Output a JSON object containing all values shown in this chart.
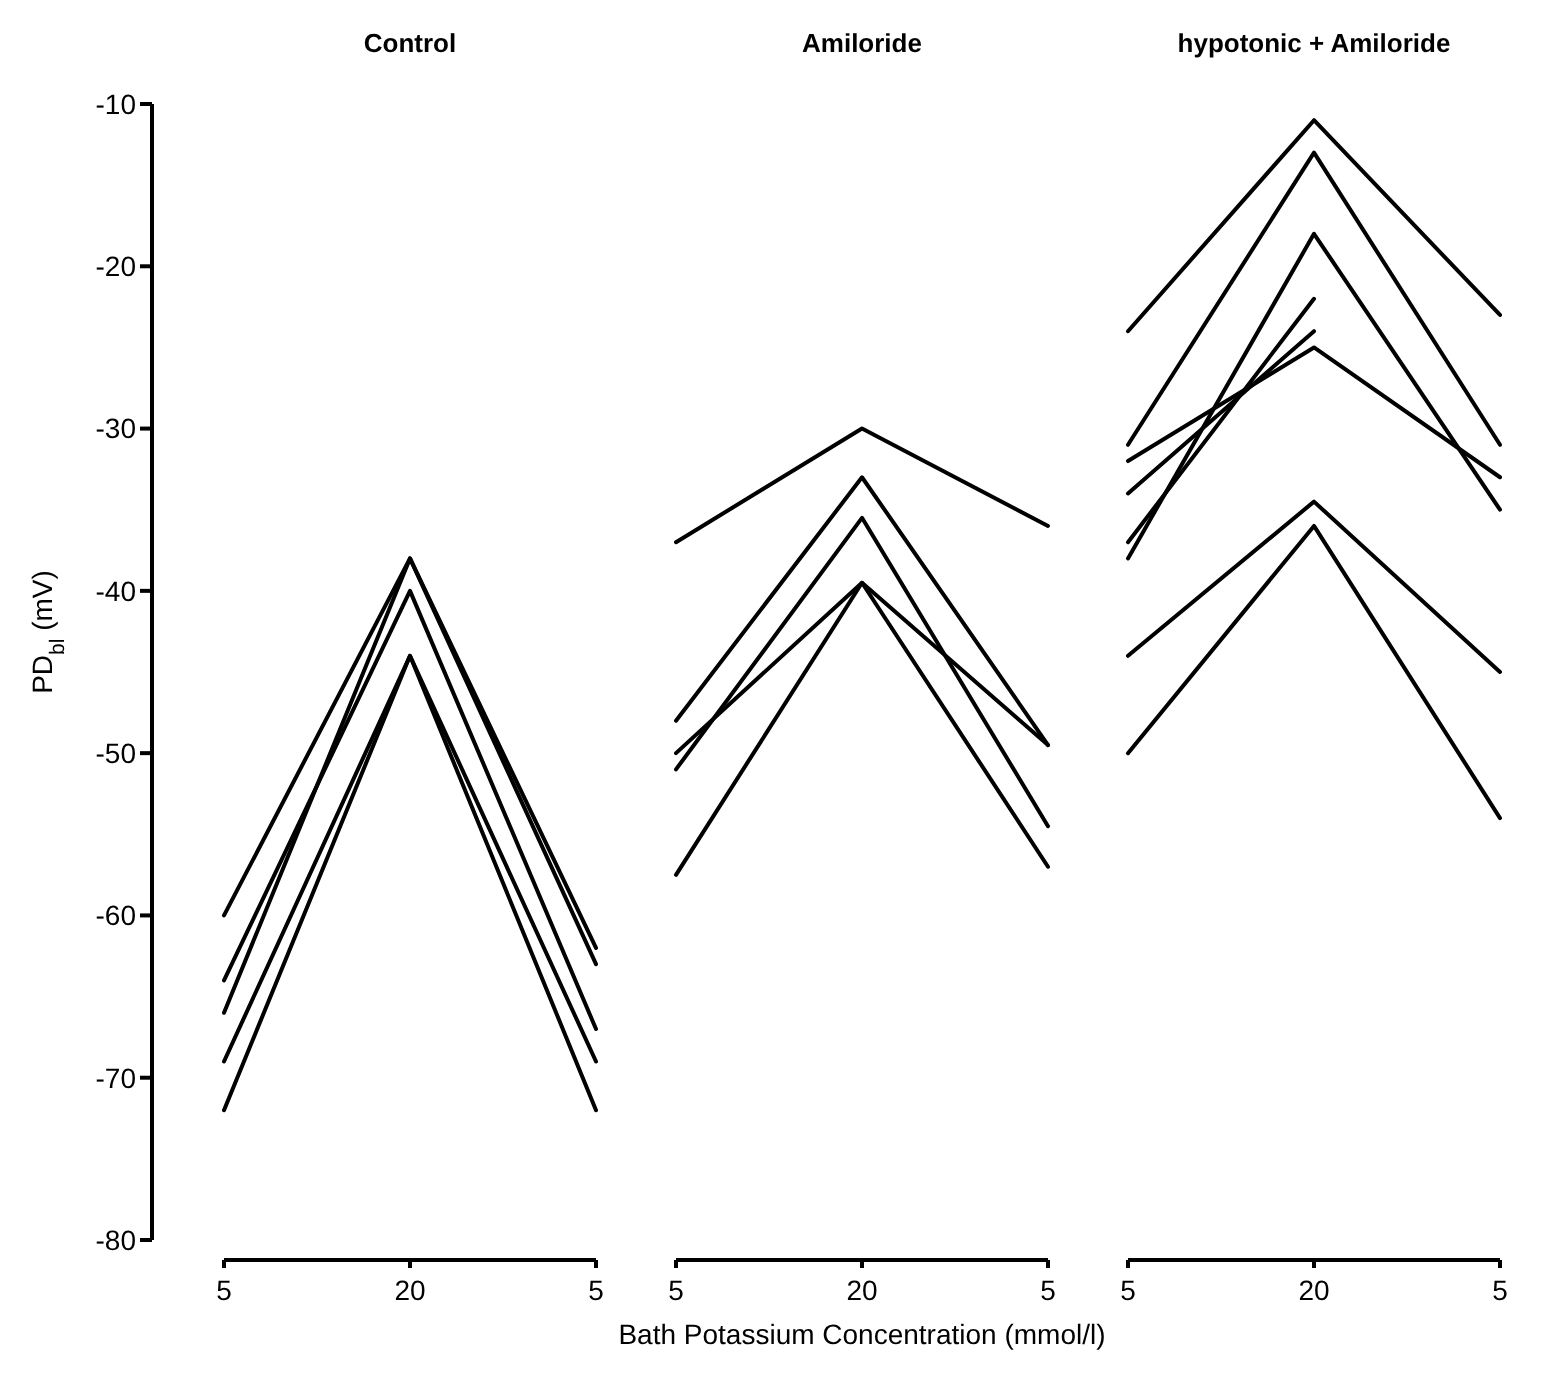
{
  "chart_data": [
    {
      "type": "line",
      "title": "Control",
      "ylabel": "PD$_{bl}$ (mV)",
      "categories": [
        "5",
        "20",
        "5"
      ],
      "ylim": [
        -80,
        -10
      ],
      "yticks": [
        -80,
        -70,
        -60,
        -50,
        -40,
        -30,
        -20,
        -10
      ],
      "series": [
        {
          "color": "#000000",
          "values": [
            -60,
            -38,
            -63
          ]
        },
        {
          "color": "#000000",
          "values": [
            -64,
            -40,
            -67
          ]
        },
        {
          "color": "#000000",
          "values": [
            -66,
            -38,
            -62
          ]
        },
        {
          "color": "#000000",
          "values": [
            -69,
            -44,
            -69
          ]
        },
        {
          "color": "#000000",
          "values": [
            -72,
            -44,
            -72
          ]
        }
      ]
    },
    {
      "type": "line",
      "title": "Amiloride",
      "xlabel": "Bath  Potassium  Concentration  (mmol/l)",
      "categories": [
        "5",
        "20",
        "5"
      ],
      "ylim": [
        -80,
        -10
      ],
      "tick_labels": "x",
      "series": [
        {
          "color": "#000000",
          "values": [
            -37,
            -30,
            -36
          ]
        },
        {
          "color": "#000000",
          "values": [
            -48,
            -33,
            -49.5
          ]
        },
        {
          "color": "#000000",
          "values": [
            -51,
            -35.5,
            -54.5
          ]
        },
        {
          "color": "#000000",
          "values": [
            -50,
            -39.5,
            -49.5
          ]
        },
        {
          "color": "#000000",
          "values": [
            -57.5,
            -39.5,
            -57
          ]
        }
      ]
    },
    {
      "type": "line",
      "title": "hypotonic + Amiloride",
      "categories": [
        "5",
        "20",
        "5"
      ],
      "ylim": [
        -80,
        -10
      ],
      "tick_labels": "x",
      "series": [
        {
          "color": "#000000",
          "values": [
            -24,
            -11,
            -23
          ]
        },
        {
          "color": "#000000",
          "values": [
            -31,
            -13,
            -31
          ]
        },
        {
          "color": "#000000",
          "values": [
            -32,
            -25,
            -33
          ]
        },
        {
          "color": "#000000",
          "values": [
            -34,
            -24,
            null
          ]
        },
        {
          "color": "#000000",
          "values": [
            -37,
            -22,
            null
          ]
        },
        {
          "color": "#000000",
          "values": [
            -38,
            -18,
            -35
          ]
        },
        {
          "color": "#000000",
          "values": [
            -44,
            -34.5,
            -45
          ]
        },
        {
          "color": "#000000",
          "values": [
            -50,
            -36,
            -54
          ]
        }
      ]
    }
  ]
}
